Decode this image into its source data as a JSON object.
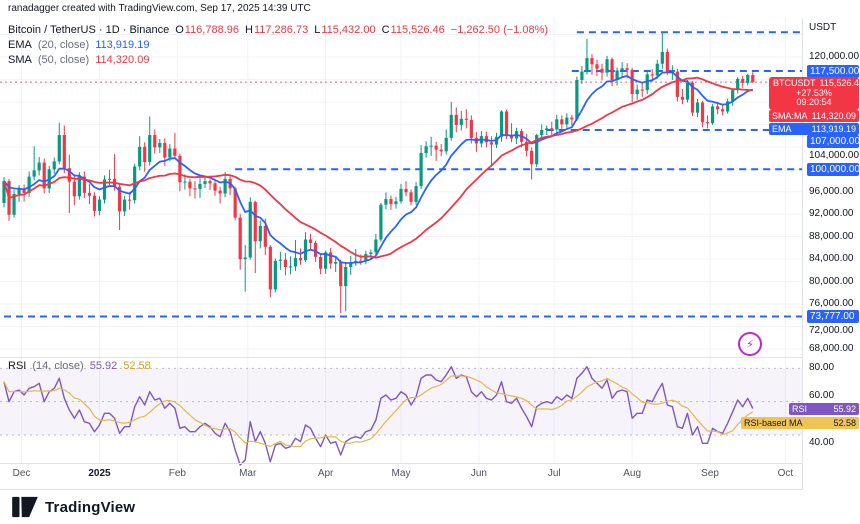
{
  "attribution": "ranadagger created with TradingView.com, Sep 17, 2025 14:39 UTC",
  "legend": {
    "title": "Bitcoin / TetherUS · 1D · Binance",
    "ohlc": {
      "o_label": "O",
      "o": "116,788.96",
      "h_label": "H",
      "h": "117,286.73",
      "l_label": "L",
      "l": "115,432.00",
      "c_label": "C",
      "c": "115,526.46",
      "change": "−1,262.50 (−1.08%)"
    },
    "ema": {
      "name": "EMA",
      "params": "(20, close)",
      "value": "113,919.19"
    },
    "sma": {
      "name": "SMA",
      "params": "(50, close)",
      "value": "114,320.09"
    }
  },
  "rsi_legend": {
    "name": "RSI",
    "params": "(14, close)",
    "value": "55.92",
    "ma_value": "52.58"
  },
  "price_axis": {
    "currency": "USDT",
    "ticks": [
      {
        "label": "120,000.00",
        "p": 120
      },
      {
        "label": "104,000.00",
        "p": 104,
        "dy": 9
      },
      {
        "label": "96,000.00",
        "p": 96
      },
      {
        "label": "92,000.00",
        "p": 92
      },
      {
        "label": "88,000.00",
        "p": 88
      },
      {
        "label": "84,000.00",
        "p": 84
      },
      {
        "label": "80,000.00",
        "p": 80
      },
      {
        "label": "76,000.00",
        "p": 76
      },
      {
        "label": "72,000.00",
        "p": 72,
        "dy": 4
      },
      {
        "label": "68,000.00",
        "p": 68
      }
    ],
    "level_badges": [
      {
        "label": "117,500.00",
        "p": 117.5
      },
      {
        "label": "107,000.00",
        "p": 107,
        "dy": 12
      },
      {
        "label": "100,000.00",
        "p": 100
      },
      {
        "label": "73,777.00",
        "p": 73.777
      }
    ],
    "rsi_ticks": [
      {
        "label": "80.00",
        "v": 80
      },
      {
        "label": "60.00",
        "v": 60,
        "dy": -6
      },
      {
        "label": "40.00",
        "v": 40,
        "dy": 8
      }
    ],
    "symbol_badge": {
      "symbol": "BTCUSDT",
      "price": "115,526.46",
      "change_pct": "+27.53%",
      "countdown": "09:20:54"
    },
    "sma_badge": {
      "label": "SMA:MA",
      "value": "114,320.09"
    },
    "ema_badge": {
      "label": "EMA",
      "value": "113,919.19"
    },
    "rsi_badge": {
      "label": "RSI",
      "value": "55.92"
    },
    "rsi_ma_badge": {
      "label": "RSI-based MA",
      "value": "52.58"
    }
  },
  "time_axis": {
    "ticks": [
      {
        "label": "Dec",
        "i": 3.5
      },
      {
        "label": "2025",
        "i": 19,
        "major": true
      },
      {
        "label": "Feb",
        "i": 34.5
      },
      {
        "label": "Mar",
        "i": 48.5
      },
      {
        "label": "Apr",
        "i": 64
      },
      {
        "label": "May",
        "i": 79
      },
      {
        "label": "Jun",
        "i": 94.5
      },
      {
        "label": "Jul",
        "i": 109.5
      },
      {
        "label": "Aug",
        "i": 125
      },
      {
        "label": "Sep",
        "i": 140.5
      },
      {
        "label": "Oct",
        "i": 155.5
      }
    ]
  },
  "icons": {
    "lightning": "⚡"
  },
  "footer": {
    "brand": "TradingView"
  },
  "colors": {
    "up": "#089981",
    "down": "#f23645",
    "ema": "#2962ff",
    "sma": "#f23645",
    "level": "#2962ff",
    "rsi": "#7e57c2",
    "rsi_ma": "#e3b84d",
    "grid": "#f0f3fa",
    "border": "#e0e3eb"
  },
  "chart_data": {
    "type": "candlestick",
    "symbol": "BTCUSDT",
    "exchange": "Binance",
    "interval": "1D",
    "title": "Bitcoin / TetherUS daily with EMA(20), SMA(50), RSI(14)",
    "unit": "thousand USDT",
    "note": "OHLC in thousands of USDT, ~2-day bars, late Nov 2024 to Sep 17 2025 (read from chart)",
    "ylim": [
      66.6,
      126.9
    ],
    "last_price": 115.526,
    "levels": [
      {
        "p": 124.4,
        "from": 114
      },
      {
        "p": 117.5,
        "from": 113
      },
      {
        "p": 107.0,
        "from": 108
      },
      {
        "p": 100.0,
        "from": 46
      },
      {
        "p": 73.777,
        "from": 0
      }
    ],
    "moving_averages": [
      {
        "label": "EMA 20",
        "color_key": "ema"
      },
      {
        "label": "SMA 50",
        "color_key": "sma"
      }
    ],
    "candles": [
      [
        94.0,
        98.6,
        93.2,
        97.9
      ],
      [
        97.9,
        98.3,
        90.8,
        91.9
      ],
      [
        91.9,
        96.3,
        91.4,
        95.6
      ],
      [
        95.6,
        97.2,
        94.2,
        96.4
      ],
      [
        96.4,
        97.3,
        94.3,
        95.8
      ],
      [
        95.8,
        99.6,
        95.1,
        98.7
      ],
      [
        98.7,
        104.1,
        98.0,
        99.8
      ],
      [
        99.8,
        102.2,
        98.9,
        101.2
      ],
      [
        101.2,
        101.9,
        95.7,
        96.6
      ],
      [
        96.6,
        100.6,
        95.8,
        100.0
      ],
      [
        100.0,
        102.1,
        99.2,
        101.4
      ],
      [
        101.4,
        108.3,
        100.9,
        106.1
      ],
      [
        106.1,
        107.8,
        99.3,
        100.2
      ],
      [
        100.2,
        102.6,
        92.2,
        97.8
      ],
      [
        97.8,
        99.1,
        93.6,
        95.2
      ],
      [
        95.2,
        99.5,
        94.6,
        98.7
      ],
      [
        98.7,
        99.6,
        94.9,
        95.8
      ],
      [
        95.8,
        97.4,
        93.8,
        95.3
      ],
      [
        95.3,
        95.9,
        91.6,
        92.6
      ],
      [
        92.6,
        95.2,
        91.8,
        94.6
      ],
      [
        94.6,
        98.9,
        93.9,
        98.2
      ],
      [
        98.2,
        99.9,
        97.2,
        98.3
      ],
      [
        98.3,
        102.7,
        96.2,
        96.9
      ],
      [
        96.9,
        97.4,
        89.2,
        92.5
      ],
      [
        92.5,
        95.3,
        91.7,
        94.6
      ],
      [
        94.6,
        96.0,
        92.8,
        94.5
      ],
      [
        94.5,
        101.0,
        93.9,
        100.5
      ],
      [
        100.5,
        105.9,
        99.8,
        104.0
      ],
      [
        104.0,
        104.8,
        99.6,
        101.3
      ],
      [
        101.3,
        109.4,
        100.7,
        106.1
      ],
      [
        106.1,
        107.1,
        102.8,
        103.9
      ],
      [
        103.9,
        105.4,
        102.9,
        104.7
      ],
      [
        104.7,
        105.5,
        100.6,
        102.1
      ],
      [
        102.1,
        104.5,
        101.5,
        103.7
      ],
      [
        103.7,
        106.5,
        101.8,
        102.4
      ],
      [
        102.4,
        102.8,
        96.1,
        97.7
      ],
      [
        97.7,
        99.1,
        96.4,
        97.8
      ],
      [
        97.8,
        98.3,
        95.2,
        96.6
      ],
      [
        96.6,
        97.9,
        94.8,
        96.5
      ],
      [
        96.5,
        98.4,
        94.9,
        97.4
      ],
      [
        97.4,
        98.5,
        96.7,
        97.9
      ],
      [
        97.9,
        98.2,
        96.3,
        97.5
      ],
      [
        97.5,
        97.9,
        95.3,
        96.2
      ],
      [
        96.2,
        96.9,
        93.9,
        95.7
      ],
      [
        95.7,
        99.5,
        95.0,
        98.3
      ],
      [
        98.3,
        98.8,
        95.4,
        96.6
      ],
      [
        96.6,
        96.9,
        90.9,
        91.4
      ],
      [
        91.4,
        92.1,
        82.1,
        84.0
      ],
      [
        84.0,
        86.5,
        78.2,
        84.3
      ],
      [
        84.3,
        95.0,
        83.9,
        94.2
      ],
      [
        94.2,
        94.4,
        81.5,
        87.2
      ],
      [
        87.2,
        90.9,
        85.9,
        89.9
      ],
      [
        89.9,
        91.2,
        84.7,
        86.2
      ],
      [
        86.2,
        86.5,
        77.2,
        78.6
      ],
      [
        78.6,
        84.1,
        78.1,
        83.7
      ],
      [
        83.7,
        85.3,
        82.1,
        83.9
      ],
      [
        83.9,
        85.1,
        81.1,
        82.6
      ],
      [
        82.6,
        84.5,
        81.3,
        82.7
      ],
      [
        82.7,
        87.4,
        81.9,
        84.2
      ],
      [
        84.2,
        85.9,
        83.0,
        83.8
      ],
      [
        83.8,
        88.8,
        83.5,
        87.5
      ],
      [
        87.5,
        88.5,
        85.8,
        86.9
      ],
      [
        86.9,
        87.3,
        83.5,
        84.4
      ],
      [
        84.4,
        85.0,
        81.3,
        82.3
      ],
      [
        82.3,
        85.5,
        81.4,
        85.2
      ],
      [
        85.2,
        86.0,
        82.3,
        83.2
      ],
      [
        83.2,
        84.5,
        81.7,
        83.5
      ],
      [
        83.5,
        83.9,
        74.4,
        79.2
      ],
      [
        79.2,
        83.5,
        74.7,
        82.6
      ],
      [
        82.6,
        84.6,
        81.2,
        83.4
      ],
      [
        83.4,
        85.8,
        82.8,
        83.7
      ],
      [
        83.7,
        84.8,
        83.0,
        83.6
      ],
      [
        83.6,
        85.5,
        83.1,
        84.9
      ],
      [
        84.9,
        85.7,
        84.0,
        85.2
      ],
      [
        85.2,
        88.5,
        84.5,
        87.5
      ],
      [
        87.5,
        94.0,
        87.1,
        93.7
      ],
      [
        93.7,
        95.9,
        92.9,
        94.7
      ],
      [
        94.7,
        95.3,
        92.8,
        93.8
      ],
      [
        93.8,
        95.1,
        93.0,
        94.3
      ],
      [
        94.3,
        97.4,
        93.9,
        96.5
      ],
      [
        96.5,
        97.9,
        95.2,
        95.9
      ],
      [
        95.9,
        96.4,
        93.6,
        94.2
      ],
      [
        94.2,
        97.7,
        93.7,
        97.0
      ],
      [
        97.0,
        104.3,
        96.5,
        102.9
      ],
      [
        102.9,
        105.0,
        102.1,
        104.1
      ],
      [
        104.1,
        105.8,
        102.4,
        104.2
      ],
      [
        104.2,
        104.9,
        101.5,
        103.5
      ],
      [
        103.5,
        104.5,
        102.3,
        103.2
      ],
      [
        103.2,
        107.1,
        102.6,
        105.6
      ],
      [
        105.6,
        112.0,
        105.1,
        109.7
      ],
      [
        109.7,
        111.0,
        106.6,
        107.9
      ],
      [
        107.9,
        110.4,
        106.9,
        109.0
      ],
      [
        109.0,
        110.7,
        107.3,
        108.8
      ],
      [
        108.8,
        109.6,
        104.6,
        105.6
      ],
      [
        105.6,
        106.6,
        103.1,
        104.6
      ],
      [
        104.6,
        106.8,
        103.9,
        105.9
      ],
      [
        105.9,
        106.7,
        103.9,
        104.8
      ],
      [
        104.8,
        105.9,
        100.5,
        104.4
      ],
      [
        104.4,
        106.5,
        103.8,
        105.8
      ],
      [
        105.8,
        110.5,
        104.9,
        110.3
      ],
      [
        110.3,
        110.6,
        105.4,
        105.9
      ],
      [
        105.9,
        108.2,
        104.8,
        105.5
      ],
      [
        105.5,
        107.4,
        104.5,
        106.8
      ],
      [
        106.8,
        107.2,
        103.9,
        104.9
      ],
      [
        104.9,
        106.3,
        102.3,
        103.3
      ],
      [
        103.3,
        103.9,
        98.2,
        100.9
      ],
      [
        100.9,
        106.3,
        100.4,
        106.1
      ],
      [
        106.1,
        108.0,
        105.3,
        107.0
      ],
      [
        107.0,
        107.8,
        106.1,
        107.3
      ],
      [
        107.3,
        108.5,
        106.0,
        107.1
      ],
      [
        107.1,
        109.7,
        106.6,
        108.9
      ],
      [
        108.9,
        109.6,
        107.2,
        108.0
      ],
      [
        108.0,
        110.0,
        107.4,
        109.2
      ],
      [
        109.2,
        109.7,
        107.8,
        108.9
      ],
      [
        108.9,
        116.5,
        108.6,
        115.9
      ],
      [
        115.9,
        118.4,
        115.2,
        117.4
      ],
      [
        117.4,
        123.2,
        116.9,
        119.8
      ],
      [
        119.8,
        120.5,
        116.8,
        118.7
      ],
      [
        118.7,
        119.5,
        116.6,
        117.9
      ],
      [
        117.9,
        118.8,
        115.8,
        117.2
      ],
      [
        117.2,
        120.2,
        116.5,
        119.6
      ],
      [
        119.6,
        119.9,
        114.8,
        115.9
      ],
      [
        115.9,
        118.1,
        114.9,
        117.6
      ],
      [
        117.6,
        119.1,
        116.4,
        118.0
      ],
      [
        118.0,
        118.9,
        116.2,
        117.7
      ],
      [
        117.7,
        118.1,
        112.0,
        113.4
      ],
      [
        113.4,
        115.1,
        112.4,
        114.2
      ],
      [
        114.2,
        115.3,
        112.9,
        114.1
      ],
      [
        114.1,
        117.4,
        113.4,
        116.9
      ],
      [
        116.9,
        117.8,
        115.6,
        116.7
      ],
      [
        116.7,
        119.5,
        116.1,
        118.8
      ],
      [
        118.8,
        124.5,
        117.9,
        120.9
      ],
      [
        120.9,
        121.5,
        116.8,
        117.4
      ],
      [
        117.4,
        118.5,
        115.9,
        117.4
      ],
      [
        117.4,
        117.9,
        112.1,
        112.9
      ],
      [
        112.9,
        114.3,
        111.6,
        112.4
      ],
      [
        112.4,
        115.9,
        111.9,
        115.4
      ],
      [
        115.4,
        115.7,
        109.5,
        110.1
      ],
      [
        110.1,
        112.5,
        109.3,
        111.9
      ],
      [
        111.9,
        112.2,
        107.5,
        108.4
      ],
      [
        108.4,
        109.6,
        107.3,
        108.2
      ],
      [
        108.2,
        111.6,
        107.9,
        111.2
      ],
      [
        111.2,
        112.0,
        109.8,
        110.7
      ],
      [
        110.7,
        111.4,
        109.6,
        110.3
      ],
      [
        110.3,
        112.6,
        109.9,
        112.1
      ],
      [
        112.1,
        114.4,
        111.3,
        114.1
      ],
      [
        114.1,
        116.4,
        113.5,
        116.1
      ],
      [
        116.1,
        116.6,
        114.5,
        115.4
      ],
      [
        115.4,
        117.0,
        114.9,
        116.8
      ],
      [
        116.8,
        117.3,
        115.4,
        115.5
      ]
    ],
    "rsi": {
      "period": 14,
      "bands": [
        80,
        60,
        40
      ],
      "values": [
        72,
        60,
        66,
        67,
        64,
        68,
        69,
        71,
        60,
        66,
        68,
        74,
        62,
        55,
        50,
        55,
        48,
        47,
        42,
        46,
        53,
        53,
        50,
        41,
        45,
        45,
        57,
        63,
        58,
        66,
        61,
        62,
        56,
        59,
        56,
        44,
        45,
        42,
        42,
        45,
        47,
        45,
        41,
        39,
        47,
        42,
        31,
        22,
        25,
        48,
        36,
        42,
        35,
        24,
        34,
        35,
        32,
        33,
        38,
        36,
        46,
        44,
        38,
        33,
        40,
        35,
        36,
        28,
        36,
        38,
        39,
        38,
        42,
        43,
        49,
        62,
        64,
        61,
        62,
        66,
        64,
        58,
        63,
        74,
        76,
        76,
        73,
        72,
        76,
        81,
        74,
        76,
        75,
        66,
        63,
        66,
        62,
        61,
        64,
        72,
        60,
        59,
        62,
        56,
        51,
        45,
        57,
        59,
        60,
        59,
        63,
        61,
        64,
        62,
        74,
        77,
        81,
        74,
        71,
        68,
        73,
        62,
        66,
        67,
        66,
        50,
        53,
        53,
        61,
        60,
        66,
        71,
        58,
        57,
        45,
        44,
        53,
        40,
        45,
        35,
        35,
        44,
        42,
        41,
        47,
        54,
        61,
        57,
        62,
        55.9
      ]
    }
  }
}
